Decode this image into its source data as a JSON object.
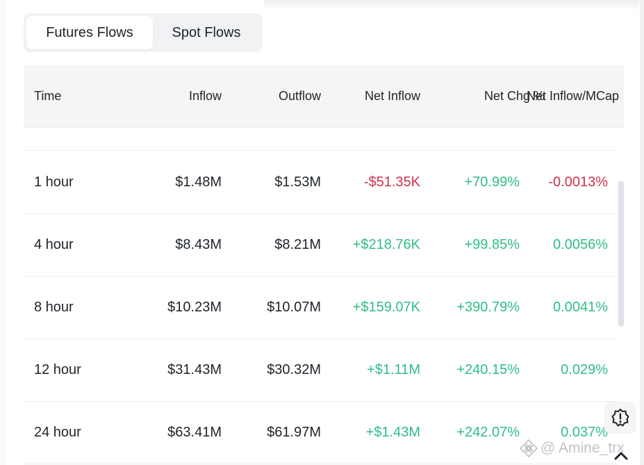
{
  "tabs": [
    {
      "label": "Futures Flows",
      "active": true
    },
    {
      "label": "Spot Flows",
      "active": false
    }
  ],
  "table": {
    "columns": {
      "time": "Time",
      "inflow": "Inflow",
      "outflow": "Outflow",
      "net_inflow": "Net Inflow",
      "net_chg": "Net Chg %",
      "net_mcap": "Net Inflow/MCap"
    },
    "rows": [
      {
        "time": "1 hour",
        "inflow": "$1.48M",
        "outflow": "$1.53M",
        "net_inflow": "-$51.35K",
        "net_chg": "+70.99%",
        "net_mcap": "-0.0013%"
      },
      {
        "time": "4 hour",
        "inflow": "$8.43M",
        "outflow": "$8.21M",
        "net_inflow": "+$218.76K",
        "net_chg": "+99.85%",
        "net_mcap": "0.0056%"
      },
      {
        "time": "8 hour",
        "inflow": "$10.23M",
        "outflow": "$10.07M",
        "net_inflow": "+$159.07K",
        "net_chg": "+390.79%",
        "net_mcap": "0.0041%"
      },
      {
        "time": "12 hour",
        "inflow": "$31.43M",
        "outflow": "$30.32M",
        "net_inflow": "+$1.11M",
        "net_chg": "+240.15%",
        "net_mcap": "0.029%"
      },
      {
        "time": "24 hour",
        "inflow": "$63.41M",
        "outflow": "$61.97M",
        "net_inflow": "+$1.43M",
        "net_chg": "+242.07%",
        "net_mcap": "0.037%"
      }
    ]
  },
  "watermark": {
    "text": "@ Amine_trx"
  },
  "colors": {
    "negative": "#cf304a",
    "positive": "#2ebd85",
    "text": "#1e2329"
  },
  "icons": {
    "settings": "gear-badge-icon",
    "scroll_top": "chevron-up-icon",
    "brand": "binance-logo-icon"
  }
}
